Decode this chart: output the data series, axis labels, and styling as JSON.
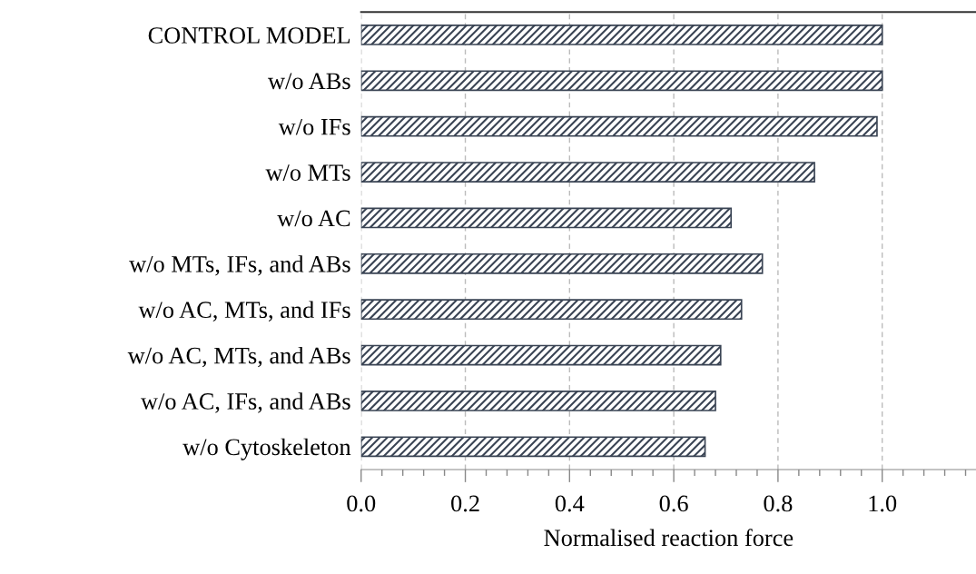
{
  "chart_data": {
    "type": "bar",
    "orientation": "horizontal",
    "categories": [
      "CONTROL MODEL",
      "w/o ABs",
      "w/o IFs",
      "w/o MTs",
      "w/o AC",
      "w/o MTs, IFs, and ABs",
      "w/o AC, MTs, and IFs",
      "w/o AC, MTs, and ABs",
      "w/o AC, IFs, and ABs",
      "w/o Cytoskeleton"
    ],
    "values": [
      1.0,
      1.0,
      0.99,
      0.87,
      0.71,
      0.77,
      0.73,
      0.69,
      0.68,
      0.66
    ],
    "color": "#3a4454",
    "xlabel": "Normalised reaction force",
    "xlim": [
      0,
      1.18
    ],
    "xticks": [
      {
        "value": 0.0,
        "label": "0.0"
      },
      {
        "value": 0.2,
        "label": "0.2"
      },
      {
        "value": 0.4,
        "label": "0.4"
      },
      {
        "value": 0.6,
        "label": "0.6"
      },
      {
        "value": 0.8,
        "label": "0.8"
      },
      {
        "value": 1.0,
        "label": "1.0"
      },
      {
        "value": 0.04,
        "label": null
      },
      {
        "value": 0.08,
        "label": null
      },
      {
        "value": 0.12,
        "label": null
      },
      {
        "value": 0.16,
        "label": null
      },
      {
        "value": 0.24,
        "label": null
      },
      {
        "value": 0.28,
        "label": null
      },
      {
        "value": 0.32,
        "label": null
      },
      {
        "value": 0.36,
        "label": null
      },
      {
        "value": 0.44,
        "label": null
      },
      {
        "value": 0.48,
        "label": null
      },
      {
        "value": 0.52,
        "label": null
      },
      {
        "value": 0.56,
        "label": null
      },
      {
        "value": 0.64,
        "label": null
      },
      {
        "value": 0.68,
        "label": null
      },
      {
        "value": 0.72,
        "label": null
      },
      {
        "value": 0.76,
        "label": null
      },
      {
        "value": 0.84,
        "label": null
      },
      {
        "value": 0.88,
        "label": null
      },
      {
        "value": 0.92,
        "label": null
      },
      {
        "value": 0.96,
        "label": null
      },
      {
        "value": 1.04,
        "label": null
      },
      {
        "value": 1.08,
        "label": null
      },
      {
        "value": 1.12,
        "label": null
      },
      {
        "value": 1.16,
        "label": null
      }
    ],
    "grid": "x"
  }
}
